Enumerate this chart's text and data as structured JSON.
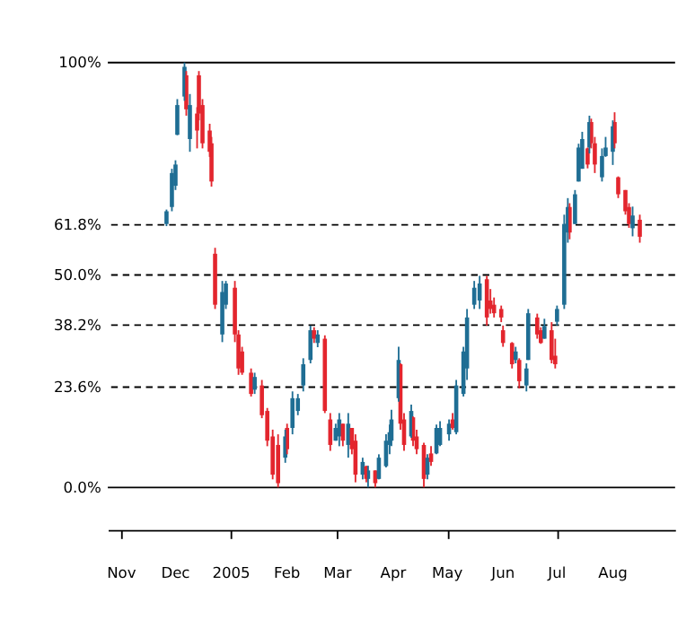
{
  "chart_data": {
    "type": "candlestick",
    "x": [
      "2004-11-26",
      "2004-11-29",
      "2004-12-01",
      "2004-12-02",
      "2004-12-06",
      "2004-12-07",
      "2004-12-09",
      "2004-12-13",
      "2004-12-14",
      "2004-12-16",
      "2004-12-20",
      "2004-12-21",
      "2004-12-23",
      "2004-12-27",
      "2004-12-29",
      "2005-01-03",
      "2005-01-05",
      "2005-01-07",
      "2005-01-12",
      "2005-01-14",
      "2005-01-18",
      "2005-01-21",
      "2005-01-24",
      "2005-01-27",
      "2005-01-31",
      "2005-02-01",
      "2005-02-04",
      "2005-02-07",
      "2005-02-10",
      "2005-02-14",
      "2005-02-16",
      "2005-02-18",
      "2005-02-22",
      "2005-02-25",
      "2005-02-28",
      "2005-03-02",
      "2005-03-04",
      "2005-03-07",
      "2005-03-09",
      "2005-03-11",
      "2005-03-15",
      "2005-03-17",
      "2005-03-18",
      "2005-03-22",
      "2005-03-24",
      "2005-03-28",
      "2005-03-30",
      "2005-03-31",
      "2005-04-04",
      "2005-04-05",
      "2005-04-07",
      "2005-04-11",
      "2005-04-12",
      "2005-04-14",
      "2005-04-18",
      "2005-04-20",
      "2005-04-22",
      "2005-04-25",
      "2005-04-27",
      "2005-05-02",
      "2005-05-04",
      "2005-05-06",
      "2005-05-10",
      "2005-05-12",
      "2005-05-16",
      "2005-05-19",
      "2005-05-23",
      "2005-05-25",
      "2005-05-27",
      "2005-05-31",
      "2005-06-01",
      "2005-06-06",
      "2005-06-08",
      "2005-06-10",
      "2005-06-14",
      "2005-06-15",
      "2005-06-20",
      "2005-06-22",
      "2005-06-24",
      "2005-06-28",
      "2005-06-30",
      "2005-07-01",
      "2005-07-05",
      "2005-07-07",
      "2005-07-08",
      "2005-07-11",
      "2005-07-13",
      "2005-07-15",
      "2005-07-18",
      "2005-07-19",
      "2005-07-20",
      "2005-07-22",
      "2005-07-26",
      "2005-07-28",
      "2005-08-01",
      "2005-08-02",
      "2005-08-04",
      "2005-08-08",
      "2005-08-10",
      "2005-08-12",
      "2005-08-16"
    ],
    "ohlc": [
      [
        62,
        65.4,
        61.5,
        65
      ],
      [
        66,
        75,
        65,
        74
      ],
      [
        71,
        77,
        70,
        76
      ],
      [
        83,
        91.4,
        82.9,
        90
      ],
      [
        92,
        100,
        91,
        99
      ],
      [
        97,
        98,
        87.5,
        89
      ],
      [
        82,
        92.6,
        79,
        90
      ],
      [
        88,
        89.5,
        79.8,
        84
      ],
      [
        97,
        98,
        86.4,
        88
      ],
      [
        90,
        91.4,
        79.8,
        81
      ],
      [
        84,
        85.6,
        77.8,
        79
      ],
      [
        81,
        82.5,
        70.8,
        72
      ],
      [
        55,
        56.4,
        42,
        43
      ],
      [
        36,
        48.6,
        34.2,
        46
      ],
      [
        43,
        48.6,
        42,
        48
      ],
      [
        47,
        48.6,
        34.2,
        36
      ],
      [
        36,
        37,
        26.5,
        28
      ],
      [
        32,
        33.1,
        26.5,
        27
      ],
      [
        27,
        28,
        21.4,
        22
      ],
      [
        23,
        27,
        22,
        26
      ],
      [
        24,
        25.3,
        16.3,
        17
      ],
      [
        18,
        18.7,
        9.7,
        11
      ],
      [
        12,
        13.6,
        1.9,
        3
      ],
      [
        10,
        12.5,
        0,
        1
      ],
      [
        7,
        13.6,
        5.8,
        12
      ],
      [
        14,
        15,
        7.8,
        9
      ],
      [
        14,
        22.6,
        12.5,
        21
      ],
      [
        18,
        22,
        17,
        21
      ],
      [
        24,
        30.4,
        22.6,
        29
      ],
      [
        30,
        38.1,
        29.2,
        37
      ],
      [
        37,
        37.7,
        34,
        35
      ],
      [
        34,
        37,
        33,
        36
      ],
      [
        35,
        35.8,
        17.5,
        18
      ],
      [
        16,
        17.5,
        8.6,
        10
      ],
      [
        11,
        15,
        11,
        14
      ],
      [
        12,
        17.5,
        9.7,
        16
      ],
      [
        15,
        15,
        9.7,
        11
      ],
      [
        10,
        17.5,
        7,
        15
      ],
      [
        14,
        14,
        7.8,
        9
      ],
      [
        11,
        12.5,
        1.2,
        3
      ],
      [
        3,
        7,
        1.9,
        6
      ],
      [
        5,
        5.1,
        1.2,
        2
      ],
      [
        2,
        5.1,
        0,
        4
      ],
      [
        4,
        4,
        0,
        1
      ],
      [
        2,
        7.8,
        1.9,
        7
      ],
      [
        5,
        12.5,
        4.7,
        11
      ],
      [
        10,
        14.8,
        7.8,
        13
      ],
      [
        11,
        18.3,
        9.7,
        16
      ],
      [
        21,
        33.1,
        20.2,
        30
      ],
      [
        29,
        29.2,
        13.6,
        15
      ],
      [
        16,
        17.5,
        8.6,
        10
      ],
      [
        12,
        19.5,
        11.7,
        18
      ],
      [
        16.5,
        16.7,
        9.7,
        11
      ],
      [
        12,
        13.6,
        7.8,
        9
      ],
      [
        10,
        10.5,
        0,
        2
      ],
      [
        3,
        7.8,
        1.9,
        7
      ],
      [
        8,
        9.7,
        5.1,
        6
      ],
      [
        8,
        14.8,
        7.8,
        14
      ],
      [
        10,
        15.6,
        9.7,
        14
      ],
      [
        12.5,
        16,
        11,
        15
      ],
      [
        16,
        17.5,
        13.6,
        14
      ],
      [
        13,
        25.3,
        12.5,
        24
      ],
      [
        22,
        33.1,
        21.4,
        32
      ],
      [
        28,
        42,
        25.3,
        40
      ],
      [
        43,
        48.6,
        42,
        47
      ],
      [
        44,
        49.8,
        42,
        48
      ],
      [
        49,
        49.8,
        38.1,
        40
      ],
      [
        44,
        46.7,
        40.9,
        42
      ],
      [
        43,
        44.7,
        40,
        41
      ],
      [
        42,
        42.8,
        38.9,
        40
      ],
      [
        37,
        38.1,
        33.1,
        34
      ],
      [
        34,
        34.2,
        28,
        29
      ],
      [
        30,
        33.1,
        29.2,
        32
      ],
      [
        30,
        30.4,
        23.3,
        25
      ],
      [
        24,
        29.2,
        22.6,
        28
      ],
      [
        30,
        42,
        30,
        41
      ],
      [
        40,
        40.9,
        35,
        36
      ],
      [
        37,
        37.7,
        33.8,
        34
      ],
      [
        35,
        39.7,
        35,
        38
      ],
      [
        37,
        38.9,
        29.2,
        30
      ],
      [
        31,
        35,
        28,
        29
      ],
      [
        39,
        42.8,
        38.1,
        42
      ],
      [
        43,
        64.2,
        42,
        62
      ],
      [
        60,
        68.1,
        57.6,
        66
      ],
      [
        66,
        66.9,
        58.4,
        60
      ],
      [
        62,
        70,
        62,
        69
      ],
      [
        72,
        80.9,
        72,
        80
      ],
      [
        75,
        83.7,
        75,
        82
      ],
      [
        79.8,
        80,
        75.1,
        76
      ],
      [
        80,
        87.5,
        78.6,
        86
      ],
      [
        86,
        86.8,
        79.8,
        81
      ],
      [
        81,
        82.5,
        74,
        76
      ],
      [
        73,
        79.8,
        72,
        78
      ],
      [
        78,
        82.5,
        77.8,
        80
      ],
      [
        79,
        86.4,
        75.9,
        85
      ],
      [
        86,
        88.3,
        79.8,
        81
      ],
      [
        73,
        73.2,
        68.1,
        69
      ],
      [
        70,
        70,
        64.2,
        65
      ],
      [
        66,
        66.9,
        61.1,
        62
      ],
      [
        61,
        66.1,
        59.1,
        64
      ],
      [
        63,
        64.2,
        57.6,
        59
      ]
    ],
    "colors": [
      "#1f6e94",
      "#1f6e94",
      "#1f6e94",
      "#1f6e94",
      "#1f6e94",
      "#e3262e",
      "#1f6e94",
      "#e3262e",
      "#e3262e",
      "#e3262e",
      "#e3262e",
      "#e3262e",
      "#e3262e",
      "#1f6e94",
      "#1f6e94",
      "#e3262e",
      "#e3262e",
      "#e3262e",
      "#e3262e",
      "#1f6e94",
      "#e3262e",
      "#e3262e",
      "#e3262e",
      "#e3262e",
      "#1f6e94",
      "#e3262e",
      "#1f6e94",
      "#1f6e94",
      "#1f6e94",
      "#1f6e94",
      "#e3262e",
      "#1f6e94",
      "#e3262e",
      "#e3262e",
      "#1f6e94",
      "#1f6e94",
      "#e3262e",
      "#1f6e94",
      "#e3262e",
      "#e3262e",
      "#1f6e94",
      "#e3262e",
      "#1f6e94",
      "#e3262e",
      "#1f6e94",
      "#1f6e94",
      "#1f6e94",
      "#1f6e94",
      "#1f6e94",
      "#e3262e",
      "#e3262e",
      "#1f6e94",
      "#e3262e",
      "#e3262e",
      "#e3262e",
      "#1f6e94",
      "#e3262e",
      "#1f6e94",
      "#1f6e94",
      "#1f6e94",
      "#e3262e",
      "#1f6e94",
      "#1f6e94",
      "#1f6e94",
      "#1f6e94",
      "#1f6e94",
      "#e3262e",
      "#e3262e",
      "#e3262e",
      "#e3262e",
      "#e3262e",
      "#e3262e",
      "#1f6e94",
      "#e3262e",
      "#1f6e94",
      "#1f6e94",
      "#e3262e",
      "#e3262e",
      "#1f6e94",
      "#e3262e",
      "#e3262e",
      "#1f6e94",
      "#1f6e94",
      "#1f6e94",
      "#e3262e",
      "#1f6e94",
      "#1f6e94",
      "#1f6e94",
      "#e3262e",
      "#1f6e94",
      "#e3262e",
      "#e3262e",
      "#1f6e94",
      "#1f6e94",
      "#1f6e94",
      "#e3262e",
      "#e3262e",
      "#e3262e",
      "#e3262e",
      "#1f6e94",
      "#e3262e"
    ],
    "ylim": [
      -10,
      100
    ],
    "yticks": [
      {
        "value": 0,
        "label": "0.0%"
      },
      {
        "value": 23.6,
        "label": "23.6%"
      },
      {
        "value": 38.2,
        "label": "38.2%"
      },
      {
        "value": 50,
        "label": "50.0%"
      },
      {
        "value": 61.8,
        "label": "61.8%"
      },
      {
        "value": 100,
        "label": "100%"
      }
    ],
    "xlim": [
      "2004-10-29",
      "2005-08-31"
    ],
    "xticks": [
      {
        "value": "2004-11-01",
        "label": "Nov"
      },
      {
        "value": "2004-12-01",
        "label": "Dec"
      },
      {
        "value": "2005-01-01",
        "label": "2005"
      },
      {
        "value": "2005-02-01",
        "label": "Feb"
      },
      {
        "value": "2005-03-01",
        "label": "Mar"
      },
      {
        "value": "2005-04-01",
        "label": "Apr"
      },
      {
        "value": "2005-05-01",
        "label": "May"
      },
      {
        "value": "2005-06-01",
        "label": "Jun"
      },
      {
        "value": "2005-07-01",
        "label": "Jul"
      },
      {
        "value": "2005-08-01",
        "label": "Aug"
      }
    ],
    "ref_lines": [
      {
        "axis": "y",
        "value": 100,
        "color": "#000000",
        "line_style": "solid"
      },
      {
        "axis": "y",
        "value": 61.8,
        "color": "#000000",
        "line_style": "dashed"
      },
      {
        "axis": "y",
        "value": 50,
        "color": "#000000",
        "line_style": "dashed"
      },
      {
        "axis": "y",
        "value": 38.2,
        "color": "#000000",
        "line_style": "dashed"
      },
      {
        "axis": "y",
        "value": 23.6,
        "color": "#000000",
        "line_style": "dashed"
      },
      {
        "axis": "y",
        "value": 0,
        "color": "#000000",
        "line_style": "solid"
      }
    ],
    "grid": false
  }
}
